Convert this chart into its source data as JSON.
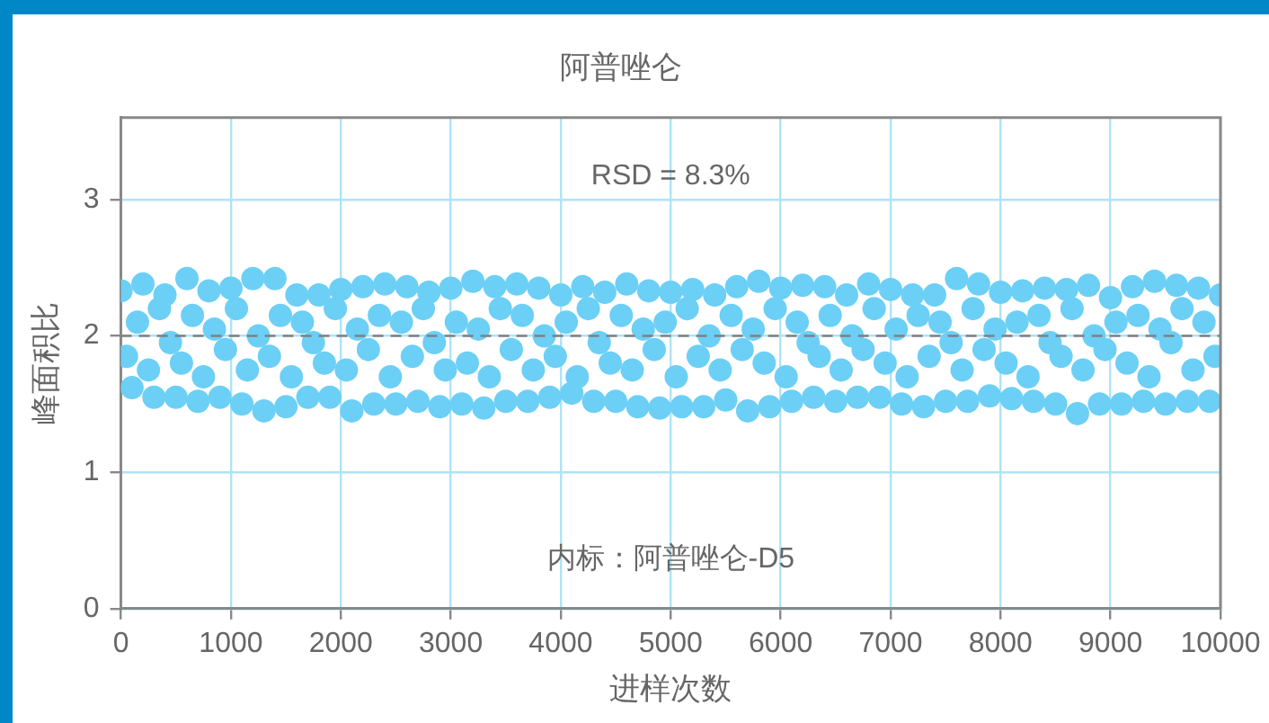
{
  "chart_data": {
    "type": "scatter",
    "title": "阿普唑仑",
    "xlabel": "进样次数",
    "ylabel": "峰面积比",
    "annotations": [
      "RSD = 8.3%",
      "内标：阿普唑仑-D5"
    ],
    "xlim": [
      0,
      10000
    ],
    "xticks": [
      0,
      1000,
      2000,
      3000,
      4000,
      5000,
      6000,
      7000,
      8000,
      9000,
      10000
    ],
    "ylim": [
      0,
      3.6
    ],
    "yticks": [
      0,
      1,
      2,
      3
    ],
    "grid": true,
    "legend": false,
    "marker": "circle",
    "ref_lines": [
      {
        "axis": "y",
        "value": 2,
        "color": "#808080",
        "line_style": "dashed"
      }
    ],
    "series": [
      {
        "color": "#6ccff6",
        "x": [
          0,
          100,
          200,
          300,
          400,
          500,
          600,
          700,
          800,
          900,
          1000,
          1100,
          1200,
          1300,
          1400,
          1500,
          1600,
          1700,
          1800,
          1900,
          2000,
          2100,
          2200,
          2300,
          2400,
          2500,
          2600,
          2700,
          2800,
          2900,
          3000,
          3100,
          3200,
          3300,
          3400,
          3500,
          3600,
          3700,
          3800,
          3900,
          4000,
          4100,
          4200,
          4300,
          4400,
          4500,
          4600,
          4700,
          4800,
          4900,
          5000,
          5100,
          5200,
          5300,
          5400,
          5500,
          5600,
          5700,
          5800,
          5900,
          6000,
          6100,
          6200,
          6300,
          6400,
          6500,
          6600,
          6700,
          6800,
          6900,
          7000,
          7100,
          7200,
          7300,
          7400,
          7500,
          7600,
          7700,
          7800,
          7900,
          8000,
          8100,
          8200,
          8300,
          8400,
          8500,
          8600,
          8700,
          8800,
          8900,
          9000,
          9100,
          9200,
          9300,
          9400,
          9500,
          9600,
          9700,
          9800,
          9900,
          10000
        ],
        "values": [
          2.33,
          1.62,
          2.38,
          1.55,
          2.3,
          1.55,
          2.42,
          1.52,
          2.33,
          1.55,
          2.35,
          1.5,
          2.42,
          1.45,
          2.42,
          1.48,
          2.3,
          1.55,
          2.3,
          1.55,
          2.34,
          1.45,
          2.36,
          1.5,
          2.38,
          1.5,
          2.36,
          1.52,
          2.32,
          1.48,
          2.35,
          1.5,
          2.4,
          1.47,
          2.36,
          1.52,
          2.38,
          1.52,
          2.35,
          1.55,
          2.3,
          1.58,
          2.36,
          1.52,
          2.32,
          1.52,
          2.38,
          1.48,
          2.33,
          1.47,
          2.32,
          1.48,
          2.34,
          1.48,
          2.3,
          1.53,
          2.36,
          1.45,
          2.4,
          1.48,
          2.35,
          1.52,
          2.37,
          1.55,
          2.36,
          1.52,
          2.3,
          1.55,
          2.38,
          1.55,
          2.34,
          1.5,
          2.3,
          1.48,
          2.3,
          1.52,
          2.42,
          1.52,
          2.38,
          1.56,
          2.32,
          1.54,
          2.33,
          1.52,
          2.35,
          1.5,
          2.34,
          1.43,
          2.37,
          1.5,
          2.28,
          1.5,
          2.36,
          1.52,
          2.4,
          1.5,
          2.37,
          1.52,
          2.35,
          1.52,
          2.3
        ]
      },
      {
        "color": "#6ccff6",
        "x": [
          50,
          150,
          250,
          350,
          450,
          550,
          650,
          750,
          850,
          950,
          1050,
          1150,
          1250,
          1350,
          1450,
          1550,
          1650,
          1750,
          1850,
          1950,
          2050,
          2150,
          2250,
          2350,
          2450,
          2550,
          2650,
          2750,
          2850,
          2950,
          3050,
          3150,
          3250,
          3350,
          3450,
          3550,
          3650,
          3750,
          3850,
          3950,
          4050,
          4150,
          4250,
          4350,
          4450,
          4550,
          4650,
          4750,
          4850,
          4950,
          5050,
          5150,
          5250,
          5350,
          5450,
          5550,
          5650,
          5750,
          5850,
          5950,
          6050,
          6150,
          6250,
          6350,
          6450,
          6550,
          6650,
          6750,
          6850,
          6950,
          7050,
          7150,
          7250,
          7350,
          7450,
          7550,
          7650,
          7750,
          7850,
          7950,
          8050,
          8150,
          8250,
          8350,
          8450,
          8550,
          8650,
          8750,
          8850,
          8950,
          9050,
          9150,
          9250,
          9350,
          9450,
          9550,
          9650,
          9750,
          9850,
          9950
        ],
        "values": [
          1.85,
          2.1,
          1.75,
          2.2,
          1.95,
          1.8,
          2.15,
          1.7,
          2.05,
          1.9,
          2.2,
          1.75,
          2.0,
          1.85,
          2.15,
          1.7,
          2.1,
          1.95,
          1.8,
          2.2,
          1.75,
          2.05,
          1.9,
          2.15,
          1.7,
          2.1,
          1.85,
          2.2,
          1.95,
          1.75,
          2.1,
          1.8,
          2.05,
          1.7,
          2.2,
          1.9,
          2.15,
          1.75,
          2.0,
          1.85,
          2.1,
          1.7,
          2.2,
          1.95,
          1.8,
          2.15,
          1.75,
          2.05,
          1.9,
          2.1,
          1.7,
          2.2,
          1.85,
          2.0,
          1.75,
          2.15,
          1.9,
          2.05,
          1.8,
          2.2,
          1.7,
          2.1,
          1.95,
          1.85,
          2.15,
          1.75,
          2.0,
          1.9,
          2.2,
          1.8,
          2.05,
          1.7,
          2.15,
          1.85,
          2.1,
          1.95,
          1.75,
          2.2,
          1.9,
          2.05,
          1.8,
          2.1,
          1.7,
          2.15,
          1.95,
          1.85,
          2.2,
          1.75,
          2.0,
          1.9,
          2.1,
          1.8,
          2.15,
          1.7,
          2.05,
          1.95,
          2.2,
          1.75,
          2.1,
          1.85
        ]
      }
    ]
  }
}
